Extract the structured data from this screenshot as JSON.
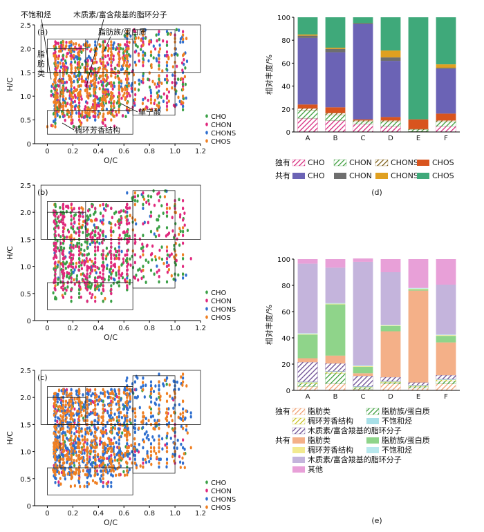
{
  "chart_data": [
    {
      "type": "scatter",
      "panel_label": "(a)",
      "xlabel": "O/C",
      "ylabel": "H/C",
      "xlim": [
        -0.1,
        1.2
      ],
      "ylim": [
        0,
        2.5
      ],
      "xticks": [
        "0",
        "0.2",
        "0.4",
        "0.6",
        "0.8",
        "1.0",
        "1.2"
      ],
      "yticks": [
        "0",
        "0.5",
        "1.0",
        "1.5",
        "2.0",
        "2.5"
      ],
      "legend": [
        "CHO",
        "CHON",
        "CHONS",
        "CHOS"
      ],
      "legend_placement": "right",
      "region_labels": [
        "不饱和烃",
        "木质素/富含羧基的脂环分子",
        "脂肪族/蛋白质",
        "脂肪类",
        "单宁酸",
        "稠环芳香结构"
      ],
      "region_label_lines": [
        "脂",
        "肪",
        "类"
      ],
      "dominant_series": "mixed"
    },
    {
      "type": "scatter",
      "panel_label": "(b)",
      "xlabel": "O/C",
      "ylabel": "H/C",
      "xlim": [
        -0.1,
        1.2
      ],
      "ylim": [
        0,
        2.5
      ],
      "xticks": [
        "0",
        "0.2",
        "0.4",
        "0.6",
        "0.8",
        "1.0",
        "1.2"
      ],
      "yticks": [
        "0",
        "0.5",
        "1.0",
        "1.5",
        "2.0",
        "2.5"
      ],
      "legend": [
        "CHO",
        "CHON",
        "CHONS",
        "CHOS"
      ],
      "legend_placement": "right"
    },
    {
      "type": "scatter",
      "panel_label": "(c)",
      "xlabel": "O/C",
      "ylabel": "H/C",
      "xlim": [
        -0.1,
        1.2
      ],
      "ylim": [
        0,
        2.5
      ],
      "xticks": [
        "0",
        "0.2",
        "0.4",
        "0.6",
        "0.8",
        "1.0",
        "1.2"
      ],
      "yticks": [
        "0",
        "0.5",
        "1.0",
        "1.5",
        "2.0",
        "2.5"
      ],
      "legend": [
        "CHO",
        "CHON",
        "CHONS",
        "CHOS"
      ],
      "legend_placement": "right"
    },
    {
      "type": "bar",
      "stacked": true,
      "panel_label": "(d)",
      "ylabel": "相对丰度/%",
      "ylim": [
        0,
        100
      ],
      "yticks": [
        "0",
        "20",
        "40",
        "60",
        "80",
        "100"
      ],
      "categories": [
        "A",
        "B",
        "C",
        "D",
        "E",
        "F"
      ],
      "legend_rows": [
        {
          "label": "独有",
          "items": [
            "CHO",
            "CHON",
            "CHONS",
            "CHOS"
          ]
        },
        {
          "label": "共有",
          "items": [
            "CHO",
            "CHON",
            "CHONS",
            "CHOS"
          ]
        }
      ],
      "series": [
        {
          "group": "独有",
          "name": "CHO",
          "color": "#d6287d",
          "hatch": true,
          "values": [
            12,
            10,
            7,
            5,
            0.5,
            5
          ]
        },
        {
          "group": "独有",
          "name": "CHON",
          "color": "#3a9d3a",
          "hatch": true,
          "values": [
            7,
            5,
            2,
            4,
            1.5,
            4
          ]
        },
        {
          "group": "独有",
          "name": "CHONS",
          "color": "#7a5a10",
          "hatch": true,
          "values": [
            1.5,
            1.5,
            1,
            1,
            0.5,
            1
          ]
        },
        {
          "group": "独有",
          "name": "CHOS",
          "color": "#d8541e",
          "hatch": false,
          "values": [
            3.5,
            5,
            1,
            3,
            8.5,
            6
          ]
        },
        {
          "group": "共有",
          "name": "CHO",
          "color": "#6b63b5",
          "hatch": false,
          "values": [
            58,
            48,
            83,
            49,
            0,
            39
          ]
        },
        {
          "group": "共有",
          "name": "CHON",
          "color": "#6e6e6e",
          "hatch": false,
          "values": [
            2,
            3,
            1,
            3,
            0,
            1
          ]
        },
        {
          "group": "共有",
          "name": "CHONS",
          "color": "#e0a020",
          "hatch": false,
          "values": [
            1,
            1,
            0,
            6,
            0,
            3
          ]
        },
        {
          "group": "共有",
          "name": "CHOS",
          "color": "#3fa97a",
          "hatch": false,
          "values": [
            15,
            26.5,
            5,
            29,
            89,
            41
          ]
        }
      ]
    },
    {
      "type": "bar",
      "stacked": true,
      "panel_label": "(e)",
      "ylabel": "相对丰度/%",
      "ylim": [
        0,
        100
      ],
      "yticks": [
        "0",
        "20",
        "40",
        "60",
        "80",
        "100"
      ],
      "categories": [
        "A",
        "B",
        "C",
        "D",
        "E",
        "F"
      ],
      "legend_rows": [
        {
          "label": "独有",
          "items": [
            "脂肪类",
            "脂肪族/蛋白质",
            "稠环芳香结构",
            "不饱和烃",
            "木质素/富含羧基的脂环分子"
          ]
        },
        {
          "label": "共有",
          "items": [
            "脂肪类",
            "脂肪族/蛋白质",
            "稠环芳香结构",
            "不饱和烃",
            "木质素/富含羧基的脂环分子",
            "其他"
          ]
        }
      ],
      "series": [
        {
          "group": "独有",
          "name": "脂肪类",
          "color": "#f0a070",
          "hatch": true,
          "values": [
            3,
            5,
            1,
            5,
            2,
            5
          ]
        },
        {
          "group": "独有",
          "name": "脂肪族/蛋白质",
          "color": "#3a9d3a",
          "hatch": true,
          "values": [
            2,
            8,
            1,
            1,
            1,
            2
          ]
        },
        {
          "group": "独有",
          "name": "稠环芳香结构",
          "color": "#c8c020",
          "hatch": true,
          "values": [
            1,
            1,
            0.5,
            0.5,
            0.5,
            1
          ]
        },
        {
          "group": "独有",
          "name": "不饱和烃",
          "color": "#a8e0e8",
          "hatch": false,
          "values": [
            0.5,
            0.5,
            0.5,
            0.5,
            0.5,
            0.5
          ]
        },
        {
          "group": "独有",
          "name": "木质素/富含羧基的脂环分子",
          "color": "#6a4a90",
          "hatch": true,
          "values": [
            15,
            6,
            8,
            3,
            2,
            3
          ]
        },
        {
          "group": "共有",
          "name": "脂肪类",
          "color": "#f4b088",
          "hatch": false,
          "values": [
            3,
            6,
            2,
            35,
            70,
            25
          ]
        },
        {
          "group": "共有",
          "name": "脂肪族/蛋白质",
          "color": "#8fd48a",
          "hatch": false,
          "values": [
            18,
            39,
            5,
            4,
            1,
            5
          ]
        },
        {
          "group": "共有",
          "name": "稠环芳香结构",
          "color": "#f2ea90",
          "hatch": false,
          "values": [
            0.5,
            0.5,
            0.5,
            0.5,
            0.5,
            0.5
          ]
        },
        {
          "group": "共有",
          "name": "不饱和烃",
          "color": "#b8e8ee",
          "hatch": false,
          "values": [
            0.5,
            0.5,
            0.5,
            0.5,
            0.5,
            0.5
          ]
        },
        {
          "group": "共有",
          "name": "木质素/富含羧基的脂环分子",
          "color": "#c4b4dc",
          "hatch": false,
          "values": [
            53,
            27,
            79,
            40,
            0,
            38
          ]
        },
        {
          "group": "共有",
          "name": "其他",
          "color": "#e8a0d8",
          "hatch": false,
          "values": [
            3.5,
            6.5,
            2.5,
            10,
            22,
            19.5
          ]
        }
      ]
    }
  ]
}
